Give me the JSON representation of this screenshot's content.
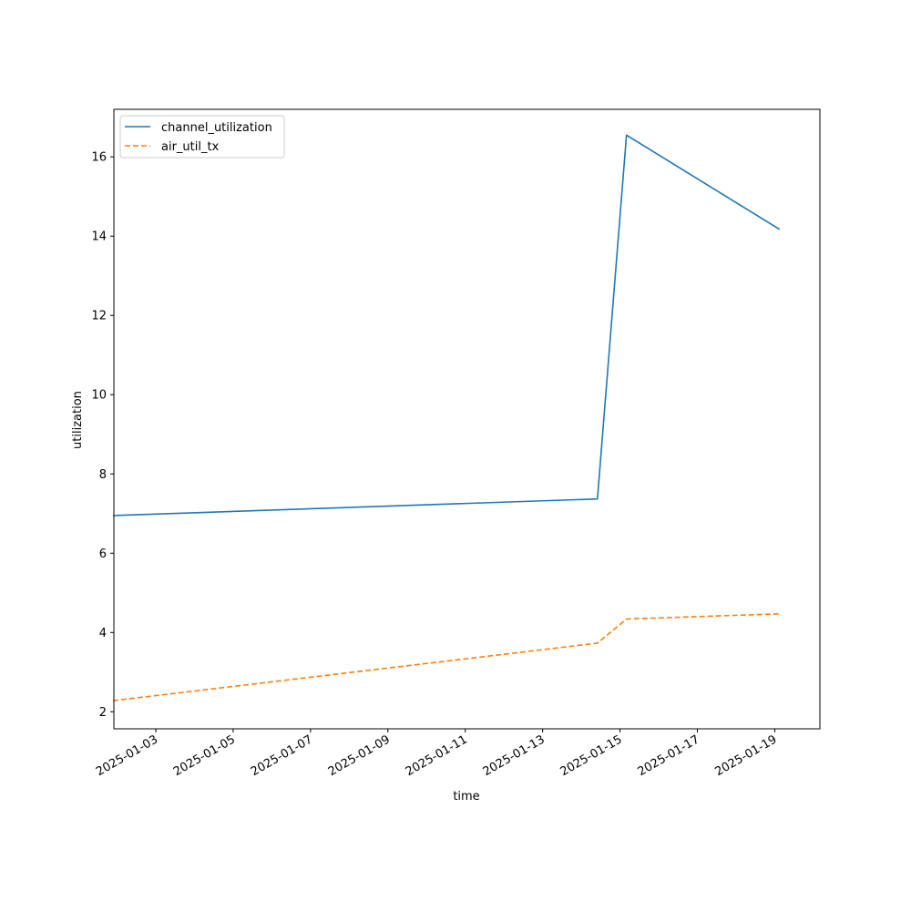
{
  "chart_data": {
    "type": "line",
    "title": "",
    "xlabel": "time",
    "ylabel": "utilization",
    "x_scale": "date",
    "xlim": [
      "2025-01-01T22:00",
      "2025-01-20T04:00"
    ],
    "ylim": [
      1.57,
      17.2
    ],
    "x_ticks": [
      "2025-01-03",
      "2025-01-05",
      "2025-01-07",
      "2025-01-09",
      "2025-01-11",
      "2025-01-13",
      "2025-01-15",
      "2025-01-17",
      "2025-01-19"
    ],
    "y_ticks": [
      2,
      4,
      6,
      8,
      10,
      12,
      14,
      16
    ],
    "grid": false,
    "legend": {
      "position": "top-left"
    },
    "series": [
      {
        "name": "channel_utilization",
        "color": "#1f77b4",
        "style": "solid",
        "points": [
          {
            "x": "2025-01-01T21:30",
            "y": 6.95
          },
          {
            "x": "2025-01-14T10:00",
            "y": 7.37
          },
          {
            "x": "2025-01-15T04:00",
            "y": 16.55
          },
          {
            "x": "2025-01-19T03:00",
            "y": 14.17
          }
        ]
      },
      {
        "name": "air_util_tx",
        "color": "#ff7f0e",
        "style": "dashed",
        "points": [
          {
            "x": "2025-01-01T21:30",
            "y": 2.28
          },
          {
            "x": "2025-01-14T10:00",
            "y": 3.73
          },
          {
            "x": "2025-01-15T04:00",
            "y": 4.34
          },
          {
            "x": "2025-01-19T03:00",
            "y": 4.47
          }
        ]
      }
    ]
  }
}
